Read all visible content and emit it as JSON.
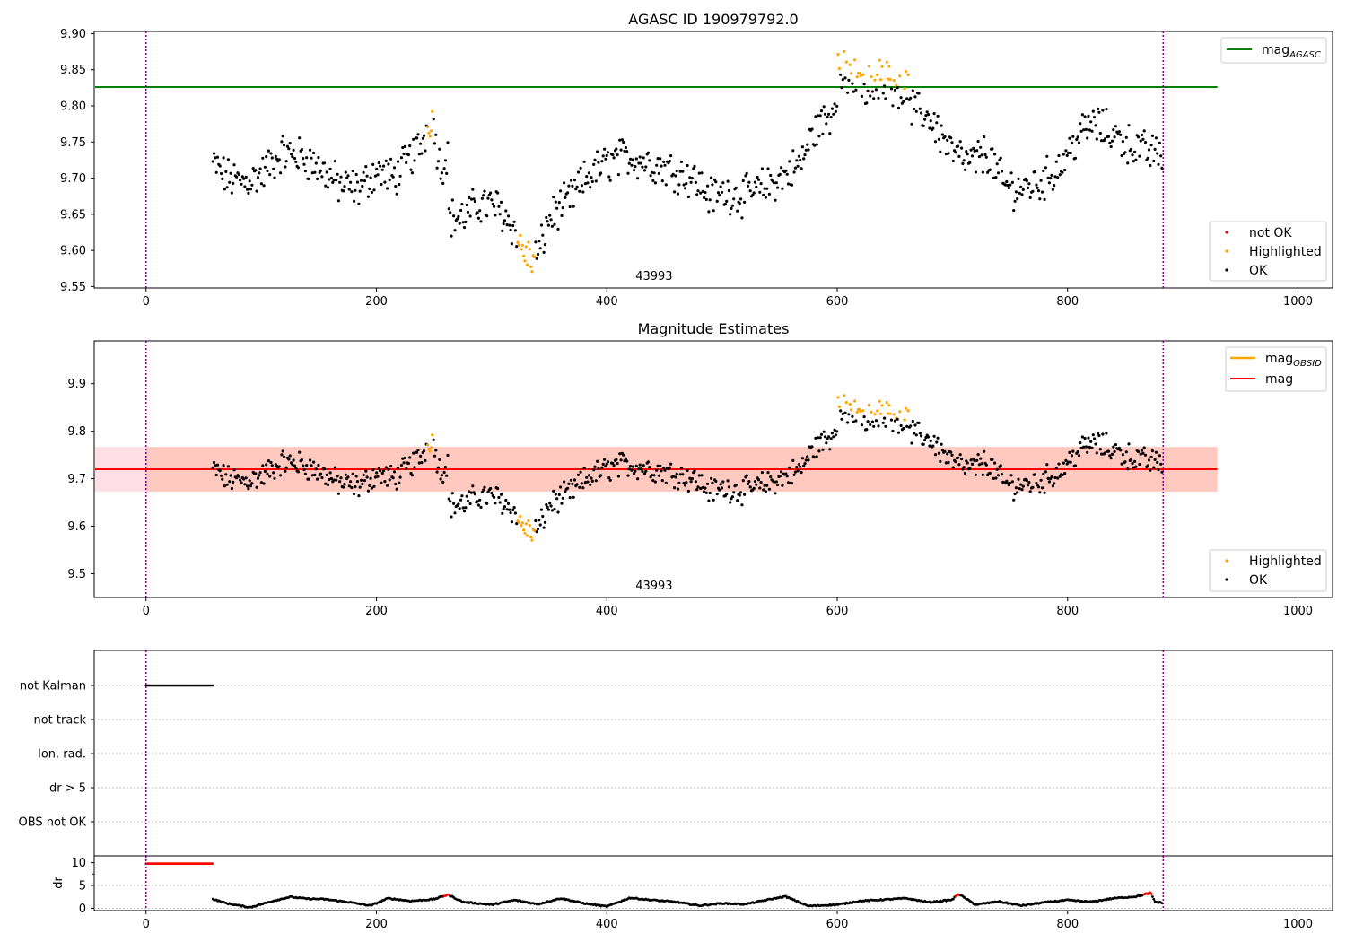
{
  "colors": {
    "ok": "#000000",
    "highlighted": "#ffa500",
    "not_ok": "#ff0000",
    "agasc_line": "#008000",
    "obsid_line": "#ffa500",
    "mag_line": "#ff0000",
    "band_fill": "#ffc0cb",
    "band_overlap": "#ffa07a",
    "obs_boundary": "#800080",
    "grid": "#b0b0b0"
  },
  "chart_data": [
    {
      "type": "scatter",
      "title": "AGASC ID 190979792.0",
      "xlim": [
        -45,
        1030
      ],
      "ylim": [
        9.548,
        9.903
      ],
      "xticks": [
        0,
        200,
        400,
        600,
        800,
        1000
      ],
      "yticks": [
        9.55,
        9.6,
        9.65,
        9.7,
        9.75,
        9.8,
        9.85,
        9.9
      ],
      "ytick_labels": [
        "9.55",
        "9.60",
        "9.65",
        "9.70",
        "9.75",
        "9.80",
        "9.85",
        "9.90"
      ],
      "mag_agasc": 9.826,
      "mag_agasc_xrange": [
        -45,
        930
      ],
      "obs_boundaries": [
        0,
        883
      ],
      "obsid_annotation": {
        "text": "43993",
        "x": 441
      },
      "legend_lines": [
        {
          "label": "mag",
          "sub": "AGASC",
          "color_key": "agasc_line"
        }
      ],
      "legend_markers": [
        {
          "label": "not OK",
          "color_key": "not_ok"
        },
        {
          "label": "Highlighted",
          "color_key": "highlighted"
        },
        {
          "label": "OK",
          "color_key": "ok"
        }
      ],
      "series_anchor": {
        "x": [
          58,
          70,
          85,
          100,
          118,
          135,
          150,
          168,
          185,
          200,
          215,
          228,
          240,
          248,
          256,
          262,
          263,
          275,
          290,
          305,
          318,
          325,
          335,
          342,
          350,
          365,
          385,
          405,
          420,
          440,
          460,
          475,
          490,
          505,
          520,
          540,
          555,
          568,
          580,
          595,
          602,
          615,
          625,
          640,
          655,
          665,
          680,
          700,
          715,
          730,
          745,
          760,
          778,
          795,
          810,
          822,
          835,
          850,
          870,
          883
        ],
        "y": [
          9.72,
          9.7,
          9.695,
          9.705,
          9.735,
          9.73,
          9.715,
          9.69,
          9.685,
          9.71,
          9.7,
          9.725,
          9.75,
          9.79,
          9.71,
          9.74,
          9.645,
          9.645,
          9.665,
          9.66,
          9.635,
          9.605,
          9.585,
          9.6,
          9.645,
          9.665,
          9.705,
          9.725,
          9.73,
          9.72,
          9.71,
          9.7,
          9.675,
          9.68,
          9.675,
          9.69,
          9.705,
          9.72,
          9.765,
          9.79,
          9.835,
          9.825,
          9.815,
          9.82,
          9.81,
          9.795,
          9.785,
          9.735,
          9.72,
          9.735,
          9.69,
          9.685,
          9.695,
          9.72,
          9.76,
          9.775,
          9.765,
          9.75,
          9.735,
          9.735
        ]
      },
      "highlighted_ranges": [
        [
          244,
          249
        ],
        [
          322,
          338
        ],
        [
          600,
          662
        ]
      ]
    },
    {
      "type": "scatter",
      "title": "Magnitude Estimates",
      "xlim": [
        -45,
        1030
      ],
      "ylim": [
        9.45,
        9.99
      ],
      "xticks": [
        0,
        200,
        400,
        600,
        800,
        1000
      ],
      "yticks": [
        9.5,
        9.6,
        9.7,
        9.8,
        9.9
      ],
      "ytick_labels": [
        "9.5",
        "9.6",
        "9.7",
        "9.8",
        "9.9"
      ],
      "mag": 9.72,
      "mag_band": [
        9.673,
        9.767
      ],
      "mag_xrange": [
        -45,
        930
      ],
      "mag_obsid": 9.72,
      "mag_obsid_band": [
        9.673,
        9.767
      ],
      "mag_obsid_xrange": [
        0,
        930
      ],
      "obs_boundaries": [
        0,
        883
      ],
      "obsid_annotation": {
        "text": "43993",
        "x": 441
      },
      "legend_lines": [
        {
          "label": "mag",
          "sub": "OBSID",
          "color_key": "obsid_line"
        },
        {
          "label": "mag",
          "sub": "",
          "color_key": "mag_line"
        }
      ],
      "legend_markers": [
        {
          "label": "Highlighted",
          "color_key": "highlighted"
        },
        {
          "label": "OK",
          "color_key": "ok"
        }
      ]
    },
    {
      "type": "scatter",
      "title": "",
      "xlim": [
        -45,
        1030
      ],
      "flags": [
        "not Kalman",
        "not track",
        "Ion. rad.",
        "dr > 5",
        "OBS not OK"
      ],
      "flag_ranges": {
        "not Kalman": [
          0,
          58
        ]
      },
      "obs_boundaries": [
        0,
        883
      ]
    },
    {
      "type": "line",
      "title": "",
      "xlim": [
        -45,
        1030
      ],
      "ylim": [
        -0.5,
        11.5
      ],
      "xticks": [
        0,
        200,
        400,
        600,
        800,
        1000
      ],
      "yticks": [
        0,
        5,
        10
      ],
      "ytick_labels": [
        "0",
        "5",
        "10"
      ],
      "ylabel": "dr",
      "obs_boundaries": [
        0,
        883
      ],
      "dr_saturated": {
        "range": [
          0,
          58
        ],
        "value": 9.8
      },
      "dr_anchor": {
        "x": [
          58,
          70,
          90,
          110,
          125,
          140,
          155,
          175,
          195,
          210,
          230,
          250,
          262,
          275,
          300,
          320,
          340,
          360,
          380,
          400,
          420,
          440,
          460,
          480,
          500,
          520,
          540,
          555,
          575,
          600,
          620,
          640,
          660,
          680,
          700,
          705,
          720,
          740,
          760,
          780,
          800,
          820,
          840,
          860,
          872,
          876,
          883
        ],
        "y": [
          2.0,
          1.1,
          0.2,
          1.6,
          2.5,
          2.1,
          2.0,
          1.4,
          0.6,
          2.2,
          1.6,
          2.0,
          3.0,
          1.4,
          0.8,
          1.8,
          0.9,
          2.2,
          1.1,
          0.4,
          2.3,
          1.8,
          1.4,
          0.6,
          1.1,
          0.9,
          1.9,
          2.6,
          0.5,
          0.8,
          1.6,
          1.9,
          2.2,
          1.3,
          1.9,
          3.2,
          0.8,
          1.5,
          0.6,
          1.3,
          1.8,
          1.4,
          2.2,
          2.6,
          3.4,
          1.4,
          1.2
        ]
      },
      "dr_not_ok": [
        [
          258,
          263
        ],
        [
          702,
          706
        ],
        [
          866,
          873
        ]
      ]
    }
  ]
}
